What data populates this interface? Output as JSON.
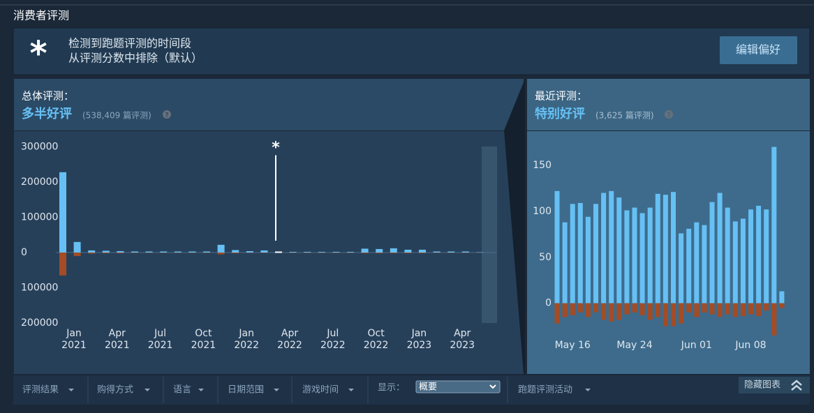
{
  "header": {
    "title": "消费者评测"
  },
  "notice": {
    "icon": "*",
    "lines": [
      "检测到跑题评测的时间段",
      "从评测分数中排除（默认）"
    ],
    "button": "编辑偏好"
  },
  "overall": {
    "label": "总体评测：",
    "rating": "多半好评",
    "count": "(538,409 篇评测)",
    "help": "?",
    "chart": {
      "type": "bar",
      "categories": [
        "Jan 2021",
        null,
        null,
        "Apr 2021",
        null,
        null,
        "Jul 2021",
        null,
        null,
        "Oct 2021",
        null,
        null,
        "Jan 2022",
        null,
        null,
        "Apr 2022",
        null,
        null,
        "Jul 2022",
        null,
        null,
        "Oct 2022",
        null,
        null,
        "Jan 2023",
        null,
        null,
        "Apr 2023",
        null,
        null
      ],
      "series": [
        {
          "color": "#66c0f4",
          "values": [
            228000,
            30000,
            6000,
            5000,
            4000,
            3000,
            3000,
            3000,
            3000,
            3000,
            3000,
            22000,
            7000,
            4000,
            6000,
            3000,
            2000,
            2000,
            2000,
            2000,
            2000,
            11000,
            10000,
            12000,
            8000,
            8000,
            3000,
            3000,
            3000,
            1000
          ]
        },
        {
          "color": "#a34c25",
          "values": [
            -65000,
            -10000,
            -3000,
            -2000,
            -2000,
            -1000,
            -1000,
            -1000,
            -1000,
            -1000,
            -1000,
            -5000,
            -2000,
            -1000,
            -1000,
            -1000,
            -1000,
            -1000,
            -1000,
            -1000,
            -1000,
            -2000,
            -2000,
            -2000,
            -2000,
            -2000,
            -1000,
            -1000,
            -1000,
            -500
          ]
        }
      ],
      "annotation": {
        "text": "*",
        "index": 15,
        "color": "#ffffff"
      },
      "ylim": [
        -200000,
        300000
      ],
      "yticks": [
        300000,
        200000,
        100000,
        0,
        {
          "value": -100000,
          "label": "100000"
        },
        {
          "value": -200000,
          "label": "200000"
        }
      ]
    }
  },
  "recent": {
    "label": "最近评测：",
    "rating": "特别好评",
    "count": "(3,625 篇评测)",
    "help": "?",
    "chart": {
      "type": "bar",
      "categories": [
        null,
        null,
        "May 16",
        null,
        null,
        null,
        null,
        null,
        null,
        null,
        "May 24",
        null,
        null,
        null,
        null,
        null,
        null,
        null,
        "Jun 01",
        null,
        null,
        null,
        null,
        null,
        null,
        "Jun 08",
        null,
        null,
        null,
        null
      ],
      "series": [
        {
          "color": "#66c0f4",
          "values": [
            122,
            88,
            108,
            109,
            94,
            108,
            120,
            122,
            115,
            101,
            104,
            98,
            104,
            119,
            118,
            121,
            76,
            81,
            88,
            85,
            110,
            120,
            104,
            89,
            92,
            102,
            106,
            102,
            170,
            13
          ]
        },
        {
          "color": "#a34c25",
          "values": [
            -22,
            -15,
            -13,
            -10,
            -15,
            -10,
            -18,
            -20,
            -18,
            -12,
            -10,
            -13,
            -18,
            -15,
            -25,
            -25,
            -22,
            -10,
            -15,
            -10,
            -12,
            -15,
            -12,
            -15,
            -14,
            -12,
            -14,
            -8,
            -35,
            -5
          ]
        }
      ],
      "ylim": [
        -45,
        175
      ],
      "yticks": [
        150,
        100,
        50,
        0
      ]
    }
  },
  "filters": {
    "items": [
      "评测结果",
      "购得方式",
      "语言",
      "日期范围",
      "游戏时间"
    ],
    "display_label": "显示：",
    "display_value": "概要",
    "offtopic": "跑题评测活动",
    "hide": "隐藏图表"
  }
}
